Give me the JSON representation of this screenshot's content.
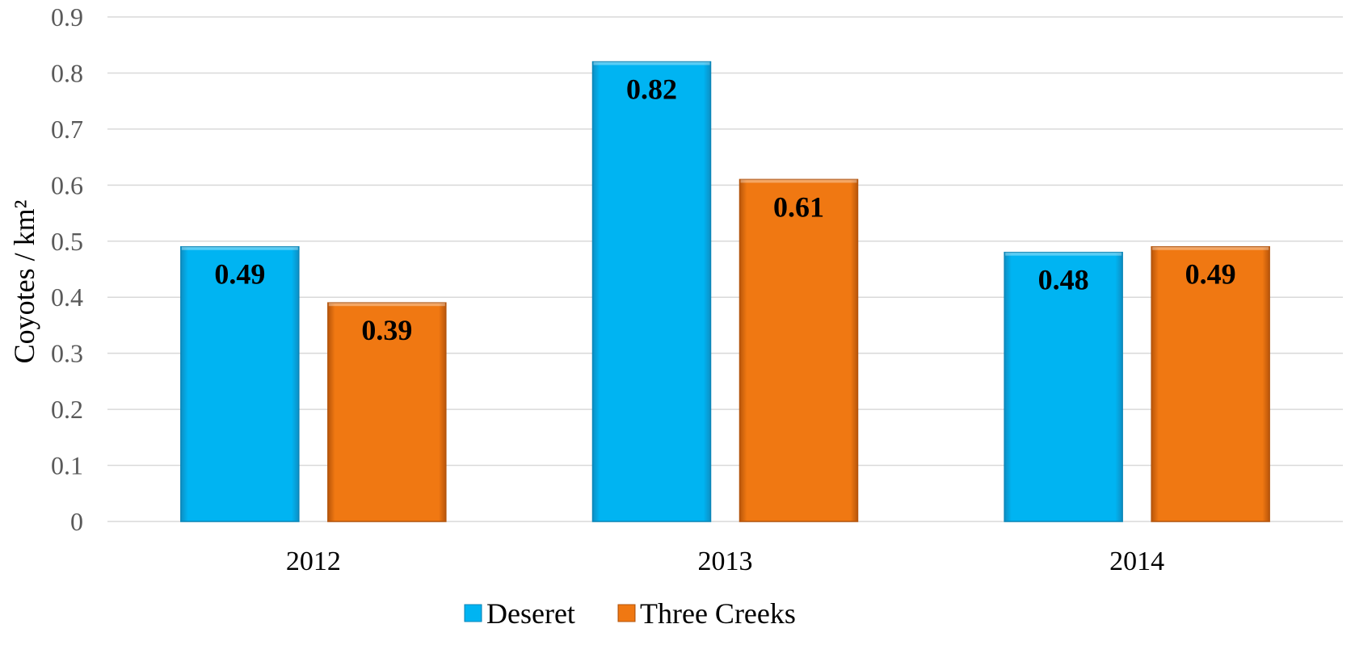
{
  "chart_data": {
    "type": "bar",
    "title": "",
    "xlabel": "",
    "ylabel": "Coyotes / km²",
    "categories": [
      "2012",
      "2013",
      "2014"
    ],
    "ylim": [
      0,
      0.9
    ],
    "yticks": [
      0,
      0.1,
      0.2,
      0.3,
      0.4,
      0.5,
      0.6,
      0.7,
      0.8,
      0.9
    ],
    "grid": true,
    "legend": "bottom",
    "series": [
      {
        "name": "Deseret",
        "color": "#00b0f0",
        "values": [
          0.49,
          0.82,
          0.48
        ],
        "labels": [
          "0.49",
          "0.82",
          "0.48"
        ]
      },
      {
        "name": "Three Creeks",
        "color": "#f07810",
        "values": [
          0.39,
          0.61,
          0.49
        ],
        "labels": [
          "0.39",
          "0.61",
          "0.49"
        ]
      }
    ]
  }
}
